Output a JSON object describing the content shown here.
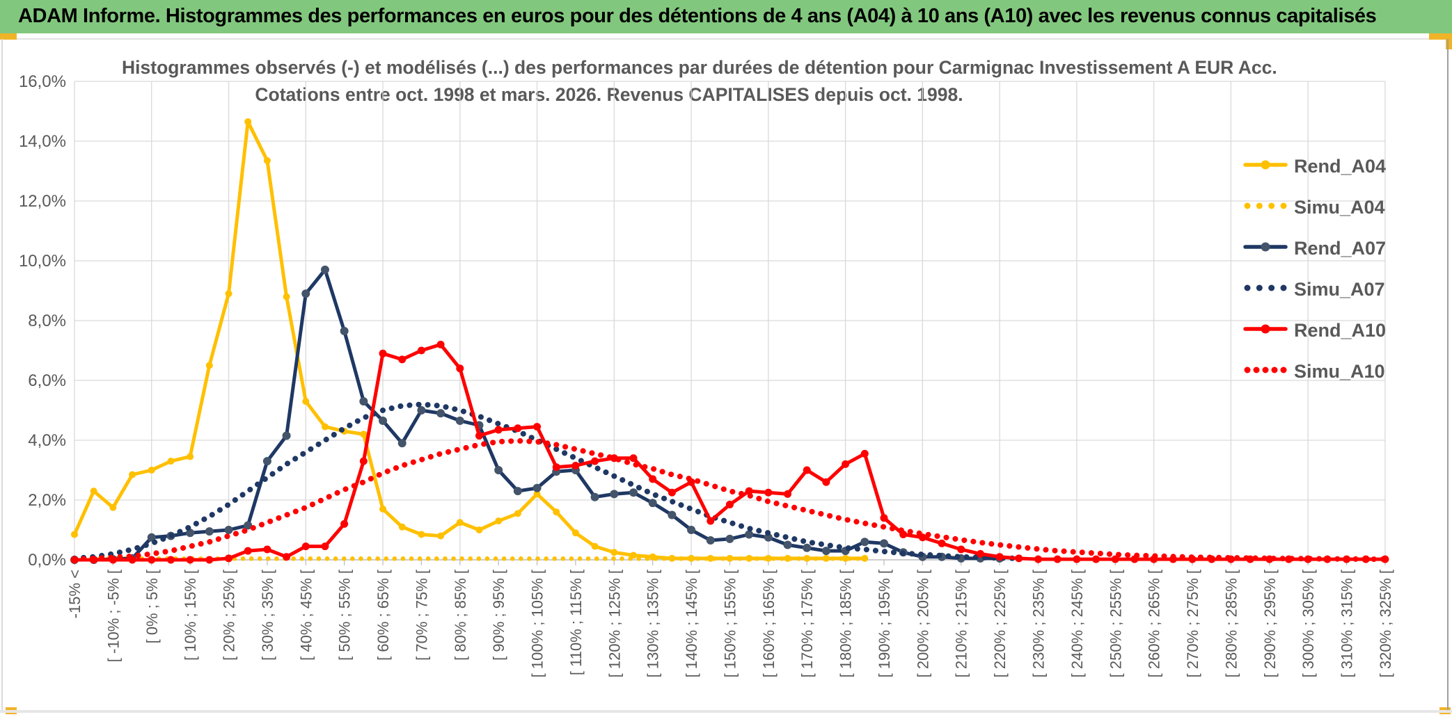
{
  "header": {
    "title": "ADAM Informe. Histogrammes des performances en euros pour des détentions de 4 ans (A04) à 10 ans (A10) avec les revenus connus capitalisés"
  },
  "chart": {
    "title_line1": "Histogrammes observés (-) et modélisés (...) des performances par durées de détention pour Carmignac Investissement A EUR Acc.",
    "title_line2": "Cotations entre oct. 1998 et mars. 2026. Revenus CAPITALISES depuis oct. 1998."
  },
  "colors": {
    "header_green": "#82C77E",
    "accent_gold": "#F0B428",
    "text_gray": "#595959",
    "gridline": "#D9D9D9",
    "axis": "#BFBFBF",
    "series_gold": "#FFC000",
    "series_navy": "#1F3864",
    "series_navy_marker": "#44546A",
    "series_red": "#FF0000"
  },
  "chart_data": {
    "type": "line",
    "n_bins": 69,
    "bin_width_pct": 5,
    "x_label_every": 2,
    "ylim": [
      0,
      16
    ],
    "grid": {
      "h_step_pct": 2,
      "v_step_bins": 4
    },
    "legend_position": "right",
    "y_ticks": [
      "0,0%",
      "2,0%",
      "4,0%",
      "6,0%",
      "8,0%",
      "10,0%",
      "12,0%",
      "14,0%",
      "16,0%"
    ],
    "x_labels": [
      "-15% <",
      "[ -10% ; -5% [",
      "[ 0% ; 5% [",
      "[ 10% ; 15% [",
      "[ 20% ; 25% [",
      "[ 30% ; 35% [",
      "[ 40% ; 45% [",
      "[ 50% ; 55% [",
      "[ 60% ; 65% [",
      "[ 70% ; 75% [",
      "[ 80% ; 85% [",
      "[ 90% ; 95% [",
      "[ 100% ; 105% [",
      "[ 110% ; 115% [",
      "[ 120% ; 125% [",
      "[ 130% ; 135% [",
      "[ 140% ; 145% [",
      "[ 150% ; 155% [",
      "[ 160% ; 165% [",
      "[ 170% ; 175% [",
      "[ 180% ; 185% [",
      "[ 190% ; 195% [",
      "[ 200% ; 205% [",
      "[ 210% ; 215% [",
      "[ 220% ; 225% [",
      "[ 230% ; 235% [",
      "[ 240% ; 245% [",
      "[ 250% ; 255% [",
      "[ 260% ; 265% [",
      "[ 270% ; 275% [",
      "[ 280% ; 285% [",
      "[ 290% ; 295% [",
      "[ 300% ; 305% [",
      "[ 310% ; 315% [",
      "[ 320% ; 325% ["
    ],
    "series": [
      {
        "name": "Rend_A04",
        "style": "solid",
        "color": "#FFC000",
        "marker_color": "#FFC000",
        "marker_r": 5,
        "legend_dots": 0,
        "values": [
          0.85,
          2.3,
          1.75,
          2.85,
          3,
          3.3,
          3.45,
          6.5,
          8.9,
          14.65,
          13.35,
          8.8,
          5.3,
          4.45,
          4.3,
          4.2,
          1.7,
          1.1,
          0.85,
          0.8,
          1.25,
          1,
          1.3,
          1.55,
          2.2,
          1.6,
          0.9,
          0.45,
          0.25,
          0.15,
          0.1,
          0.05,
          0.05,
          0.05,
          0.05,
          0.05,
          0.05,
          0.05,
          0.05,
          0.05,
          0.05,
          0.05,
          null,
          null,
          null,
          null,
          null,
          null,
          null,
          null,
          null,
          null,
          null,
          null,
          null,
          null,
          null,
          null,
          null,
          null,
          null,
          null,
          null,
          null,
          null,
          null,
          null,
          null,
          null
        ]
      },
      {
        "name": "Simu_A04",
        "style": "dotted",
        "color": "#FFC000",
        "dot_width": 6.5,
        "dot_gap": 12,
        "legend_dots": 4,
        "values": [
          0.04,
          0.04,
          0.04,
          0.04,
          0.04,
          0.04,
          0.04,
          0.04,
          0.04,
          0.04,
          0.04,
          0.04,
          0.04,
          0.04,
          0.04,
          0.04,
          0.04,
          0.04,
          0.04,
          0.04,
          0.04,
          0.04,
          0.04,
          0.04,
          0.04,
          0.04,
          0.04,
          0.04,
          0.04,
          0.04,
          0.04,
          0.04,
          0.04,
          0.04,
          0.04,
          0.04,
          0.04,
          0.04,
          0.04,
          0.04,
          0.04,
          0.04,
          null,
          null,
          null,
          null,
          null,
          null,
          null,
          null,
          null,
          null,
          null,
          null,
          null,
          null,
          null,
          null,
          null,
          null,
          null,
          null,
          null,
          null,
          null,
          null,
          null,
          null,
          null
        ]
      },
      {
        "name": "Rend_A07",
        "style": "solid",
        "color": "#1F3864",
        "marker_color": "#44546A",
        "marker_r": 6,
        "legend_dots": 0,
        "values": [
          0,
          0,
          0.02,
          0.05,
          0.75,
          0.8,
          0.9,
          0.95,
          1,
          1.15,
          3.3,
          4.15,
          8.9,
          9.7,
          7.65,
          5.3,
          4.65,
          3.9,
          5,
          4.9,
          4.65,
          4.5,
          3,
          2.3,
          2.4,
          2.95,
          3,
          2.1,
          2.2,
          2.25,
          1.9,
          1.5,
          1,
          0.65,
          0.7,
          0.85,
          0.75,
          0.5,
          0.4,
          0.3,
          0.3,
          0.6,
          0.55,
          0.25,
          0.1,
          0.1,
          0.05,
          0.05,
          0.05,
          null,
          null,
          null,
          null,
          null,
          null,
          null,
          null,
          null,
          null,
          null,
          null,
          null,
          null,
          null,
          null,
          null,
          null,
          null,
          null
        ]
      },
      {
        "name": "Simu_A07",
        "style": "dotted",
        "color": "#1F3864",
        "dot_width": 8,
        "dot_gap": 13,
        "legend_dots": 4,
        "values": [
          0.05,
          0.1,
          0.2,
          0.35,
          0.55,
          0.8,
          1.1,
          1.45,
          1.85,
          2.3,
          2.75,
          3.2,
          3.6,
          4,
          4.4,
          4.75,
          5,
          5.15,
          5.2,
          5.15,
          5,
          4.8,
          4.55,
          4.3,
          4,
          3.7,
          3.4,
          3.1,
          2.8,
          2.5,
          2.2,
          1.95,
          1.7,
          1.45,
          1.25,
          1.05,
          0.9,
          0.75,
          0.6,
          0.5,
          0.4,
          0.35,
          0.28,
          0.22,
          0.18,
          0.14,
          0.1,
          0.08,
          0.06,
          0.05,
          null,
          null,
          null,
          null,
          null,
          null,
          null,
          null,
          null,
          null,
          null,
          null,
          null,
          null,
          null,
          null,
          null,
          null,
          null
        ]
      },
      {
        "name": "Rend_A10",
        "style": "solid",
        "color": "#FF0000",
        "marker_color": "#FF0000",
        "marker_r": 5.5,
        "legend_dots": 0,
        "values": [
          0,
          0,
          0,
          0,
          0,
          0,
          0,
          0,
          0.05,
          0.3,
          0.35,
          0.1,
          0.45,
          0.45,
          1.2,
          3.3,
          6.9,
          6.7,
          7,
          7.2,
          6.4,
          4.15,
          4.35,
          4.4,
          4.45,
          3.1,
          3.15,
          3.3,
          3.4,
          3.4,
          2.7,
          2.25,
          2.6,
          1.3,
          1.85,
          2.3,
          2.25,
          2.2,
          3,
          2.6,
          3.2,
          3.55,
          1.4,
          0.85,
          0.75,
          0.55,
          0.35,
          0.2,
          0.1,
          0.05,
          0.02,
          0.02,
          0.02,
          0.02,
          0.02,
          0.02,
          0.02,
          0.02,
          0.02,
          0.02,
          0.02,
          0.02,
          0.02,
          0.02,
          0.02,
          0.02,
          0.02,
          0.02,
          0.02
        ]
      },
      {
        "name": "Simu_A10",
        "style": "dotted",
        "color": "#FF0000",
        "dot_width": 8,
        "dot_gap": 13,
        "legend_dots": 5,
        "values": [
          0.02,
          0.05,
          0.08,
          0.12,
          0.2,
          0.3,
          0.45,
          0.6,
          0.8,
          1,
          1.25,
          1.5,
          1.75,
          2.05,
          2.35,
          2.6,
          2.9,
          3.15,
          3.35,
          3.55,
          3.7,
          3.85,
          3.95,
          3.98,
          3.95,
          3.85,
          3.7,
          3.55,
          3.4,
          3.2,
          3.05,
          2.85,
          2.7,
          2.5,
          2.3,
          2.15,
          1.95,
          1.8,
          1.65,
          1.5,
          1.35,
          1.22,
          1.1,
          0.98,
          0.87,
          0.77,
          0.67,
          0.58,
          0.5,
          0.43,
          0.36,
          0.3,
          0.26,
          0.22,
          0.18,
          0.15,
          0.13,
          0.11,
          0.09,
          0.08,
          0.07,
          0.06,
          0.05,
          0.04,
          0.04,
          0.03,
          0.03,
          0.02,
          0.02
        ]
      }
    ]
  }
}
